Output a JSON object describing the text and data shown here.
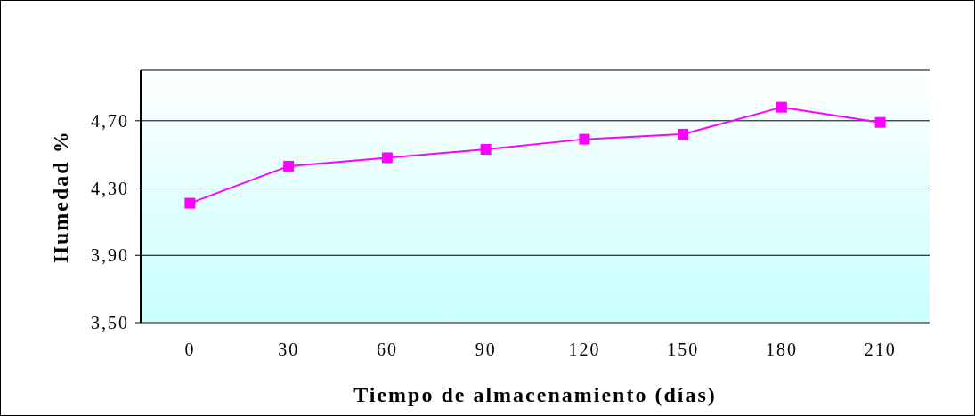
{
  "chart_data": {
    "type": "line",
    "xlabel": "Tiempo de almacenamiento (días)",
    "ylabel": "Humedad %",
    "categories": [
      "0",
      "30",
      "60",
      "90",
      "120",
      "150",
      "180",
      "210"
    ],
    "values": [
      4.21,
      4.43,
      4.48,
      4.53,
      4.59,
      4.62,
      4.78,
      4.69
    ],
    "color": "#ff00ff",
    "ylim": [
      3.5,
      5.0
    ],
    "yticks": [
      {
        "value": 3.5,
        "label": "3,50"
      },
      {
        "value": 3.9,
        "label": "3,90"
      },
      {
        "value": 4.3,
        "label": "4,30"
      },
      {
        "value": 4.7,
        "label": "4,70"
      }
    ],
    "grid": "y",
    "marker": "square",
    "line_style": "solid"
  }
}
